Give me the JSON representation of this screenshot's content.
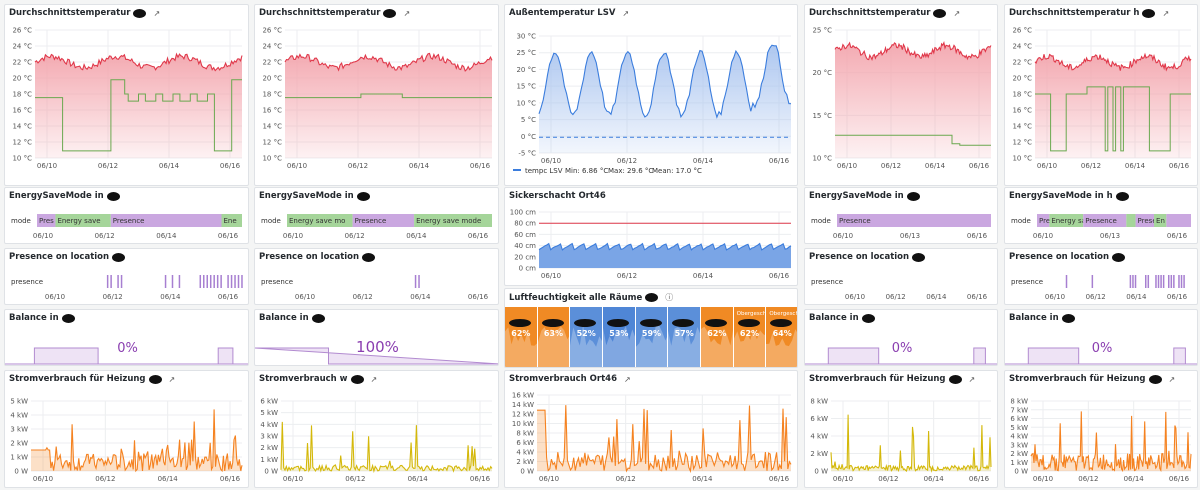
{
  "columns": [
    {
      "temp": {
        "title": "Durchschnittstemperatur",
        "ticks": [
          "26 °C",
          "24 °C",
          "22 °C",
          "20 °C",
          "18 °C",
          "16 °C",
          "14 °C",
          "12 °C",
          "10 °C"
        ],
        "dates": [
          "06/10",
          "06/12",
          "06/14",
          "06/16"
        ]
      },
      "mode": {
        "title": "EnergySaveMode in",
        "axis": "mode",
        "segments": [
          {
            "label": "Pres",
            "c": "#caa7e0"
          },
          {
            "label": "Energy save",
            "c": "#a5d59a"
          },
          {
            "label": "Presence",
            "c": "#caa7e0"
          },
          {
            "label": "Ene",
            "c": "#a5d59a"
          }
        ],
        "dates": [
          "06/10",
          "06/12",
          "06/14",
          "06/16"
        ]
      },
      "pres": {
        "title": "Presence on location",
        "axis": "presence",
        "dates": [
          "06/10",
          "06/12",
          "06/14",
          "06/16"
        ]
      },
      "bal": {
        "title": "Balance in",
        "value": "0%"
      },
      "power": {
        "title": "Stromverbrauch für Heizung",
        "ticks": [
          "5 kW",
          "4 kW",
          "3 kW",
          "2 kW",
          "1 kW",
          "0 W"
        ],
        "dates": [
          "06/10",
          "06/12",
          "06/14",
          "06/16"
        ]
      }
    },
    {
      "temp": {
        "title": "Durchschnittstemperatur",
        "ticks": [
          "26 °C",
          "24 °C",
          "22 °C",
          "20 °C",
          "18 °C",
          "16 °C",
          "14 °C",
          "12 °C",
          "10 °C"
        ],
        "dates": [
          "06/10",
          "06/12",
          "06/14",
          "06/16"
        ]
      },
      "mode": {
        "title": "EnergySaveMode in",
        "axis": "mode",
        "segments": [
          {
            "label": "Energy save mo",
            "c": "#a5d59a"
          },
          {
            "label": "Presence",
            "c": "#caa7e0"
          },
          {
            "label": "Energy save mode",
            "c": "#a5d59a"
          }
        ],
        "dates": [
          "06/10",
          "06/12",
          "06/14",
          "06/16"
        ]
      },
      "pres": {
        "title": "Presence on location",
        "axis": "presence",
        "dates": [
          "06/10",
          "06/12",
          "06/14",
          "06/16"
        ]
      },
      "bal": {
        "title": "Balance in",
        "value": "100%"
      },
      "power": {
        "title": "Stromverbrauch w",
        "ticks": [
          "6 kW",
          "5 kW",
          "4 kW",
          "3 kW",
          "2 kW",
          "1 kW",
          "0 W"
        ],
        "dates": [
          "06/10",
          "06/12",
          "06/14",
          "06/16"
        ]
      }
    },
    {
      "temp": {
        "title": "Außentemperatur LSV",
        "ticks": [
          "30 °C",
          "25 °C",
          "20 °C",
          "15 °C",
          "10 °C",
          "5 °C",
          "0 °C",
          "-5 °C"
        ],
        "dates": [
          "06/10",
          "06/12",
          "06/14",
          "06/16"
        ],
        "legend": "tempc LSV",
        "min": "Min: 6.86 °C",
        "max": "Max: 29.6 °C",
        "mean": "Mean: 17.0 °C"
      },
      "sicker": {
        "title": "Sickerschacht Ort46",
        "ticks": [
          "100 cm",
          "80 cm",
          "60 cm",
          "40 cm",
          "20 cm",
          "0 cm"
        ],
        "dates": [
          "06/10",
          "06/12",
          "06/14",
          "06/16"
        ]
      },
      "humid": {
        "title": "Luftfeuchtigkeit alle Räume",
        "tiles": [
          {
            "v": "62%",
            "c": "#f08a24"
          },
          {
            "v": "63%",
            "c": "#f08a24"
          },
          {
            "v": "52%",
            "c": "#5b8fd9"
          },
          {
            "v": "53%",
            "c": "#4f86d6"
          },
          {
            "v": "59%",
            "c": "#5b8fd9"
          },
          {
            "v": "57%",
            "c": "#5b8fd9"
          },
          {
            "v": "62%",
            "c": "#f08a24"
          },
          {
            "v": "62%",
            "c": "#f08a24",
            "n": "Obergesch"
          },
          {
            "v": "64%",
            "c": "#f08a24",
            "n": "Obergesch"
          }
        ]
      },
      "power": {
        "title": "Stromverbrauch Ort46",
        "ticks": [
          "16 kW",
          "14 kW",
          "12 kW",
          "10 kW",
          "8 kW",
          "6 kW",
          "4 kW",
          "2 kW",
          "0 W"
        ],
        "dates": [
          "06/10",
          "06/12",
          "06/14",
          "06/16"
        ]
      }
    },
    {
      "temp": {
        "title": "Durchschnittstemperatur",
        "ticks": [
          "25 °C",
          "20 °C",
          "15 °C",
          "10 °C"
        ],
        "dates": [
          "06/10",
          "06/12",
          "06/14",
          "06/16"
        ]
      },
      "mode": {
        "title": "EnergySaveMode in",
        "axis": "mode",
        "segments": [
          {
            "label": "Presence",
            "c": "#caa7e0"
          }
        ],
        "dates": [
          "06/10",
          "06/13",
          "06/16"
        ]
      },
      "pres": {
        "title": "Presence on location",
        "axis": "presence",
        "dates": [
          "06/10",
          "06/12",
          "06/14",
          "06/16"
        ]
      },
      "bal": {
        "title": "Balance in",
        "value": "0%"
      },
      "power": {
        "title": "Stromverbrauch für Heizung",
        "ticks": [
          "8 kW",
          "6 kW",
          "4 kW",
          "2 kW",
          "0 W"
        ],
        "dates": [
          "06/10",
          "06/12",
          "06/14",
          "06/16"
        ]
      }
    },
    {
      "temp": {
        "title": "Durchschnittstemperatur h",
        "ticks": [
          "26 °C",
          "24 °C",
          "22 °C",
          "20 °C",
          "18 °C",
          "16 °C",
          "14 °C",
          "12 °C",
          "10 °C"
        ],
        "dates": [
          "06/10",
          "06/12",
          "06/14",
          "06/16"
        ]
      },
      "mode": {
        "title": "EnergySaveMode in h",
        "axis": "mode",
        "segments": [
          {
            "label": "Pre",
            "c": "#caa7e0"
          },
          {
            "label": "Energy sa",
            "c": "#a5d59a"
          },
          {
            "label": "Presence",
            "c": "#caa7e0"
          },
          {
            "label": "",
            "c": "#a5d59a"
          },
          {
            "label": "Prese",
            "c": "#caa7e0"
          },
          {
            "label": "En",
            "c": "#a5d59a"
          },
          {
            "label": "",
            "c": "#caa7e0"
          }
        ],
        "dates": [
          "06/10",
          "06/13",
          "06/16"
        ]
      },
      "pres": {
        "title": "Presence on location",
        "axis": "presence",
        "dates": [
          "06/10",
          "06/12",
          "06/14",
          "06/16"
        ]
      },
      "bal": {
        "title": "Balance in",
        "value": "0%"
      },
      "power": {
        "title": "Stromverbrauch für Heizung",
        "ticks": [
          "8 kW",
          "7 kW",
          "6 kW",
          "5 kW",
          "4 kW",
          "3 kW",
          "2 kW",
          "1 kW",
          "0 W"
        ],
        "dates": [
          "06/10",
          "06/12",
          "06/14",
          "06/16"
        ]
      }
    }
  ],
  "colors": {
    "red": "#e0384a",
    "green": "#6aa84f",
    "blue": "#3b7ddd",
    "orange": "#f58220",
    "yellow": "#d4b80a",
    "purple": "#a77fd1"
  },
  "icons": {
    "external": "external-link-icon",
    "info": "info-icon"
  }
}
